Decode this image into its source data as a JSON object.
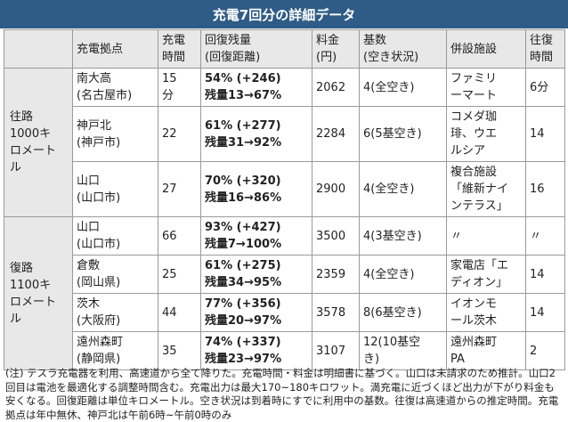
{
  "title": "充電7回分の詳細データ",
  "headers": {
    "station": "充電拠点",
    "time": "充電\n時間",
    "remaining": "回復残量\n(回復距離)",
    "fee": "料金\n(円)",
    "units": "基数\n(空き状況)",
    "facility": "併設施設",
    "travel": "往復\n時間"
  },
  "groups": {
    "outbound": "往路\n1000キ\nロメート\nル",
    "return": "復路\n1100キ\nロメート\nル"
  },
  "rows": [
    {
      "station": "南大高\n(名古屋市)",
      "time": "15\n分",
      "remaining": "54% (+246)\n残量13→67%",
      "fee": "2062",
      "units": "4(全空き)",
      "facility": "ファミリ\nーマート",
      "travel": "6分"
    },
    {
      "station": "神戸北\n(神戸市)",
      "time": "22",
      "remaining": "61% (+277)\n残量31→92%",
      "fee": "2284",
      "units": "6(5基空き)",
      "facility": "コメダ珈\n琲、ウエ\nルシア",
      "travel": "14"
    },
    {
      "station": "山口\n(山口市)",
      "time": "27",
      "remaining": "70% (+320)\n残量16→86%",
      "fee": "2900",
      "units": "4(全空き)",
      "facility": "複合施設\n「維新ナイ\nンテラス」",
      "travel": "16"
    },
    {
      "station": "山口\n(山口市)",
      "time": "66",
      "remaining": "93% (+427)\n残量7→100%",
      "fee": "3500",
      "units": "4(3基空き)",
      "facility": "〃",
      "travel": "〃"
    },
    {
      "station": "倉敷\n(岡山県)",
      "time": "25",
      "remaining": "61% (+275)\n残量34→95%",
      "fee": "2359",
      "units": "4(全空き)",
      "facility": "家電店「エ\nディオン」",
      "travel": "14"
    },
    {
      "station": "茨木\n(大阪府)",
      "time": "44",
      "remaining": "77% (+356)\n残量20→97%",
      "fee": "3578",
      "units": "8(6基空き)",
      "facility": "イオンモ\nール茨木",
      "travel": "14"
    },
    {
      "station": "遠州森町\n(静岡県)",
      "time": "35",
      "remaining": "74% (+337)\n残量23→97%",
      "fee": "3107",
      "units": "12(10基空\nき)",
      "facility": "遠州森町\nPA",
      "travel": "2"
    }
  ],
  "note": "(注) テスラ充電器を利用、高速道から全て降りた。充電時間・料金は明細書に基づく。山口は未請求のため推計。山口2回目は電池を最適化する調整時間含む。充電出力は最大170~180キロワット。満充電に近づくほど出力が下がり料金も安くなる。回復距離は単位キロメートル。空き状況は到着時にすでに利用中の基数。往復は高速道からの推定時間。充電拠点は年中無休、神戸北は午前6時~午前0時のみ"
}
